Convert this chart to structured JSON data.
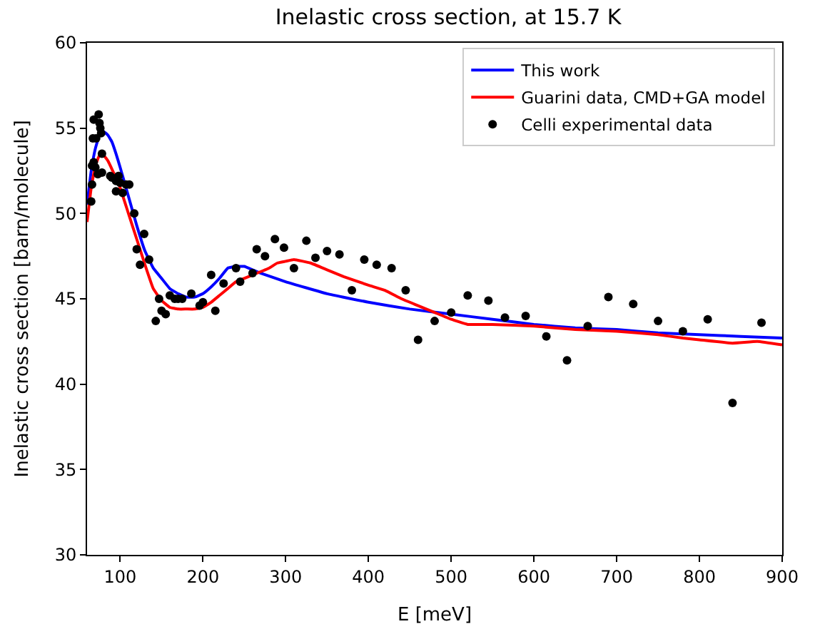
{
  "chart_data": {
    "type": "line",
    "title": "Inelastic cross section, at 15.7 K",
    "xlabel": "E [meV]",
    "ylabel": "Inelastic cross section [barn/molecule]",
    "xlim": [
      60,
      900
    ],
    "ylim": [
      30,
      60
    ],
    "xticks": [
      100,
      200,
      300,
      400,
      500,
      600,
      700,
      800,
      900
    ],
    "yticks": [
      30,
      35,
      40,
      45,
      50,
      55,
      60
    ],
    "grid": false,
    "legend": "top right",
    "series": [
      {
        "name": "This work",
        "color": "#0000ff",
        "x": [
          60,
          65,
          70,
          75,
          80,
          85,
          90,
          95,
          100,
          110,
          120,
          130,
          140,
          150,
          160,
          170,
          180,
          190,
          200,
          210,
          220,
          230,
          240,
          250,
          260,
          270,
          300,
          350,
          400,
          450,
          500,
          550,
          600,
          650,
          700,
          750,
          800,
          850,
          900
        ],
        "values": [
          50.5,
          52.5,
          53.8,
          54.6,
          54.8,
          54.6,
          54.2,
          53.5,
          52.7,
          51.0,
          49.3,
          47.8,
          46.8,
          46.2,
          45.6,
          45.3,
          45.1,
          45.1,
          45.3,
          45.7,
          46.2,
          46.8,
          46.9,
          46.9,
          46.7,
          46.5,
          46.0,
          45.3,
          44.8,
          44.4,
          44.1,
          43.8,
          43.5,
          43.3,
          43.2,
          43.0,
          42.9,
          42.8,
          42.7
        ]
      },
      {
        "name": "Guarini data, CMD+GA model",
        "color": "#ff0000",
        "x": [
          60,
          65,
          70,
          75,
          80,
          85,
          90,
          100,
          110,
          120,
          130,
          140,
          150,
          160,
          170,
          180,
          190,
          200,
          210,
          220,
          230,
          240,
          260,
          280,
          290,
          300,
          310,
          330,
          350,
          370,
          400,
          420,
          440,
          460,
          480,
          500,
          520,
          550,
          600,
          650,
          700,
          750,
          780,
          800,
          840,
          870,
          900
        ],
        "values": [
          49.5,
          51.5,
          52.8,
          53.4,
          53.4,
          53.1,
          52.6,
          51.5,
          50.0,
          48.5,
          47.0,
          45.6,
          44.9,
          44.5,
          44.4,
          44.4,
          44.4,
          44.5,
          44.8,
          45.2,
          45.6,
          46.0,
          46.4,
          46.8,
          47.1,
          47.2,
          47.3,
          47.1,
          46.7,
          46.3,
          45.8,
          45.5,
          45.0,
          44.6,
          44.2,
          43.8,
          43.5,
          43.5,
          43.4,
          43.2,
          43.1,
          42.9,
          42.7,
          42.6,
          42.4,
          42.5,
          42.3
        ]
      },
      {
        "name": "Celli experimental data",
        "color": "#000000",
        "type": "scatter",
        "marker": "circle",
        "x": [
          65,
          66,
          66,
          67,
          68,
          68,
          70,
          71,
          73,
          74,
          75,
          76,
          77,
          78,
          78,
          88,
          90,
          95,
          95,
          98,
          100,
          103,
          107,
          111,
          117,
          120,
          124,
          129,
          135,
          143,
          147,
          150,
          155,
          160,
          166,
          170,
          175,
          186,
          196,
          200,
          210,
          215,
          225,
          240,
          245,
          260,
          265,
          275,
          287,
          298,
          310,
          325,
          336,
          350,
          365,
          380,
          395,
          410,
          428,
          445,
          460,
          480,
          500,
          520,
          545,
          565,
          590,
          615,
          640,
          665,
          690,
          720,
          750,
          780,
          810,
          840,
          875
        ],
        "values": [
          50.7,
          51.7,
          52.8,
          54.4,
          53.0,
          55.5,
          52.7,
          54.4,
          52.3,
          55.8,
          55.3,
          55.0,
          54.7,
          53.5,
          52.4,
          52.2,
          52.1,
          51.9,
          51.3,
          52.2,
          51.8,
          51.2,
          51.7,
          51.7,
          50.0,
          47.9,
          47.0,
          48.8,
          47.3,
          43.7,
          45.0,
          44.3,
          44.1,
          45.2,
          45.0,
          45.0,
          45.0,
          45.3,
          44.6,
          44.8,
          46.4,
          44.3,
          45.9,
          46.8,
          46.0,
          46.5,
          47.9,
          47.5,
          48.5,
          48.0,
          46.8,
          48.4,
          47.4,
          47.8,
          47.6,
          45.5,
          47.3,
          47.0,
          46.8,
          45.5,
          42.6,
          43.7,
          44.2,
          45.2,
          44.9,
          43.9,
          44.0,
          42.8,
          41.4,
          43.4,
          45.1,
          44.7,
          43.7,
          43.1,
          43.8,
          38.9,
          43.6
        ]
      }
    ]
  }
}
